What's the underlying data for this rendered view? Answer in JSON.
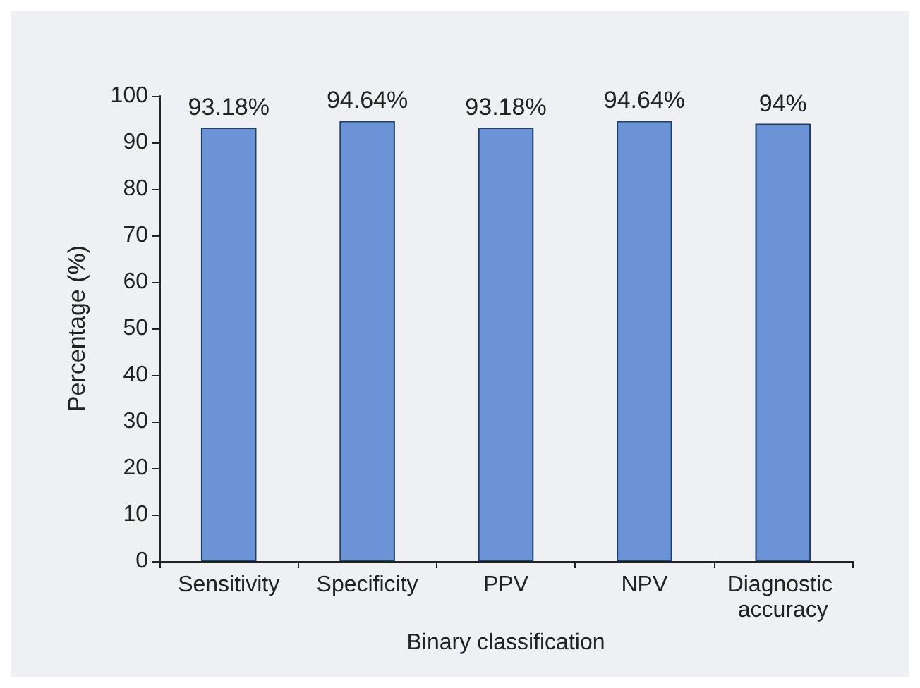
{
  "chart_data": {
    "type": "bar",
    "xlabel": "Binary classification",
    "ylabel": "Percentage (%)",
    "categories": [
      "Sensitivity",
      "Specificity",
      "PPV",
      "NPV",
      "Diagnostic accuracy"
    ],
    "values": [
      93.18,
      94.64,
      93.18,
      94.64,
      94
    ],
    "value_labels": [
      "93.18%",
      "94.64%",
      "93.18%",
      "94.64%",
      "94%"
    ],
    "color": "#6b93d6",
    "ylim": [
      0,
      100
    ],
    "yticks": [
      0,
      10,
      20,
      30,
      40,
      50,
      60,
      70,
      80,
      90,
      100
    ]
  }
}
